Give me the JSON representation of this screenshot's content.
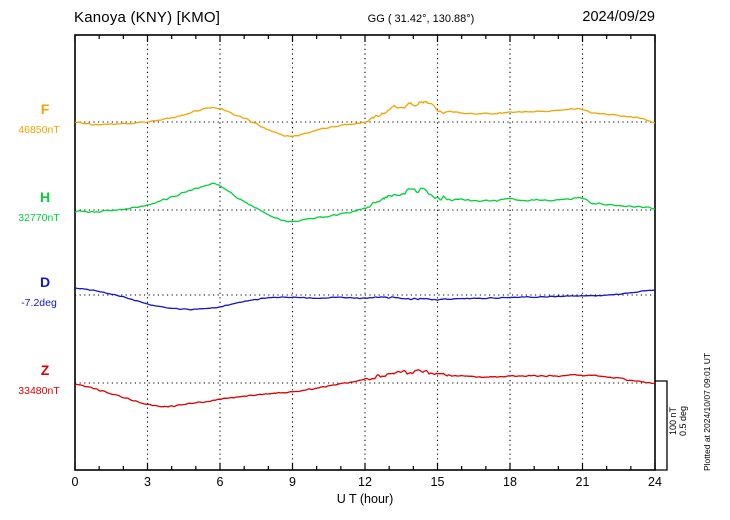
{
  "header": {
    "station": "Kanoya (KNY)  [KMO]",
    "coords": "GG ( 31.42°, 130.88°)",
    "date": "2024/09/29"
  },
  "scale": {
    "line1": "100 nT",
    "line2": "0.5 deg"
  },
  "footer": {
    "note": "Plotted at 2024/10/07 09:01 UT"
  },
  "chart_data": {
    "type": "line",
    "xlabel": "U T (hour)",
    "xlim": [
      0,
      24
    ],
    "xticks": [
      0,
      3,
      6,
      9,
      12,
      15,
      18,
      21,
      24
    ],
    "grid": "dotted vertical every 3h, dotted horizontal at each component baseline",
    "scale_bar": {
      "nT_per_bar": 100,
      "deg_per_bar": 0.5
    },
    "series": [
      {
        "name": "F",
        "value_label": "46850nT",
        "baseline_value": 46850,
        "unit": "nT",
        "color": "#f2a500",
        "noise": 1.2,
        "noise_burst": 3,
        "points": [
          [
            0,
            0
          ],
          [
            0.5,
            -2
          ],
          [
            1,
            -3
          ],
          [
            1.5,
            -3
          ],
          [
            2,
            -2
          ],
          [
            2.5,
            -1
          ],
          [
            3,
            0
          ],
          [
            3.5,
            2
          ],
          [
            4,
            5
          ],
          [
            4.5,
            8
          ],
          [
            5,
            12
          ],
          [
            5.5,
            16
          ],
          [
            5.8,
            17
          ],
          [
            6.2,
            13
          ],
          [
            6.6,
            8
          ],
          [
            7,
            4
          ],
          [
            7.5,
            -2
          ],
          [
            8,
            -9
          ],
          [
            8.5,
            -14
          ],
          [
            8.8,
            -16
          ],
          [
            9.2,
            -15
          ],
          [
            9.6,
            -12
          ],
          [
            10,
            -9
          ],
          [
            10.5,
            -6
          ],
          [
            11,
            -4
          ],
          [
            11.5,
            -2
          ],
          [
            12,
            0
          ],
          [
            12.3,
            4
          ],
          [
            12.6,
            8
          ],
          [
            13,
            13
          ],
          [
            13.3,
            20
          ],
          [
            13.5,
            15
          ],
          [
            13.8,
            22
          ],
          [
            14.1,
            18
          ],
          [
            14.4,
            25
          ],
          [
            14.6,
            20
          ],
          [
            15,
            14
          ],
          [
            15.3,
            10
          ],
          [
            15.6,
            12
          ],
          [
            16,
            10
          ],
          [
            16.5,
            9
          ],
          [
            17,
            9
          ],
          [
            17.5,
            10
          ],
          [
            18,
            11
          ],
          [
            18.5,
            11
          ],
          [
            19,
            12
          ],
          [
            19.5,
            12
          ],
          [
            20,
            13
          ],
          [
            20.5,
            14
          ],
          [
            21,
            15
          ],
          [
            21.4,
            10
          ],
          [
            21.8,
            9
          ],
          [
            22.2,
            8
          ],
          [
            22.6,
            7
          ],
          [
            23,
            6
          ],
          [
            23.4,
            4
          ],
          [
            23.7,
            2
          ],
          [
            24,
            -2
          ]
        ]
      },
      {
        "name": "H",
        "value_label": "32770nT",
        "baseline_value": 32770,
        "unit": "nT",
        "color": "#00d23c",
        "noise": 1.4,
        "noise_burst": 3,
        "points": [
          [
            0,
            -2
          ],
          [
            0.5,
            -2
          ],
          [
            1,
            -2
          ],
          [
            1.5,
            -1
          ],
          [
            2,
            1
          ],
          [
            2.5,
            3
          ],
          [
            3,
            6
          ],
          [
            3.5,
            10
          ],
          [
            4,
            14
          ],
          [
            4.5,
            19
          ],
          [
            5,
            24
          ],
          [
            5.5,
            28
          ],
          [
            5.8,
            30
          ],
          [
            6.2,
            24
          ],
          [
            6.6,
            16
          ],
          [
            7,
            9
          ],
          [
            7.5,
            2
          ],
          [
            8,
            -5
          ],
          [
            8.5,
            -11
          ],
          [
            8.8,
            -13
          ],
          [
            9.2,
            -12
          ],
          [
            9.6,
            -10
          ],
          [
            10,
            -9
          ],
          [
            10.5,
            -7
          ],
          [
            11,
            -5
          ],
          [
            11.5,
            -2
          ],
          [
            12,
            2
          ],
          [
            12.3,
            6
          ],
          [
            12.6,
            10
          ],
          [
            13,
            15
          ],
          [
            13.3,
            21
          ],
          [
            13.5,
            16
          ],
          [
            13.8,
            22
          ],
          [
            14.1,
            19
          ],
          [
            14.4,
            23
          ],
          [
            14.7,
            18
          ],
          [
            15,
            13
          ],
          [
            15.4,
            11
          ],
          [
            16,
            12
          ],
          [
            16.5,
            10
          ],
          [
            17,
            10
          ],
          [
            17.5,
            11
          ],
          [
            18,
            12
          ],
          [
            18.5,
            11
          ],
          [
            19,
            11
          ],
          [
            19.5,
            11
          ],
          [
            20,
            11
          ],
          [
            20.5,
            12
          ],
          [
            21,
            14
          ],
          [
            21.3,
            8
          ],
          [
            21.7,
            7
          ],
          [
            22,
            6
          ],
          [
            22.5,
            5
          ],
          [
            23,
            4
          ],
          [
            23.5,
            3
          ],
          [
            24,
            2
          ]
        ]
      },
      {
        "name": "D",
        "value_label": "-7.2deg",
        "baseline_value": -7.2,
        "unit": "deg",
        "color": "#1414d2",
        "noise": 0.004,
        "noise_burst": 2,
        "points": [
          [
            0,
            0.04
          ],
          [
            0.5,
            0.03
          ],
          [
            1,
            0.02
          ],
          [
            1.5,
            0.005
          ],
          [
            2,
            -0.01
          ],
          [
            2.5,
            -0.03
          ],
          [
            3,
            -0.05
          ],
          [
            3.5,
            -0.065
          ],
          [
            4,
            -0.075
          ],
          [
            4.5,
            -0.08
          ],
          [
            5,
            -0.08
          ],
          [
            5.5,
            -0.075
          ],
          [
            6,
            -0.065
          ],
          [
            6.5,
            -0.05
          ],
          [
            7,
            -0.035
          ],
          [
            7.5,
            -0.025
          ],
          [
            8,
            -0.015
          ],
          [
            8.5,
            -0.01
          ],
          [
            9,
            -0.012
          ],
          [
            9.5,
            -0.015
          ],
          [
            10,
            -0.018
          ],
          [
            10.5,
            -0.015
          ],
          [
            11,
            -0.012
          ],
          [
            11.5,
            -0.015
          ],
          [
            12,
            -0.018
          ],
          [
            12.5,
            -0.015
          ],
          [
            13,
            -0.012
          ],
          [
            13.5,
            -0.018
          ],
          [
            14,
            -0.02
          ],
          [
            14.5,
            -0.022
          ],
          [
            15,
            -0.025
          ],
          [
            15.5,
            -0.022
          ],
          [
            16,
            -0.02
          ],
          [
            16.5,
            -0.018
          ],
          [
            17,
            -0.018
          ],
          [
            17.5,
            -0.016
          ],
          [
            18,
            -0.014
          ],
          [
            18.5,
            -0.012
          ],
          [
            19,
            -0.012
          ],
          [
            19.5,
            -0.01
          ],
          [
            20,
            -0.008
          ],
          [
            20.5,
            -0.006
          ],
          [
            21,
            -0.005
          ],
          [
            21.5,
            -0.003
          ],
          [
            22,
            0
          ],
          [
            22.5,
            0.005
          ],
          [
            23,
            0.012
          ],
          [
            23.5,
            0.02
          ],
          [
            24,
            0.03
          ]
        ]
      },
      {
        "name": "Z",
        "value_label": "33480nT",
        "baseline_value": 33480,
        "unit": "nT",
        "color": "#e00000",
        "noise": 1.1,
        "noise_burst": 3,
        "points": [
          [
            0,
            -1
          ],
          [
            0.5,
            -4
          ],
          [
            1,
            -8
          ],
          [
            1.5,
            -12
          ],
          [
            2,
            -16
          ],
          [
            2.5,
            -20
          ],
          [
            3,
            -24
          ],
          [
            3.5,
            -26
          ],
          [
            4,
            -26
          ],
          [
            4.5,
            -24
          ],
          [
            5,
            -22
          ],
          [
            5.5,
            -20
          ],
          [
            6,
            -18
          ],
          [
            6.5,
            -16
          ],
          [
            7,
            -15
          ],
          [
            7.5,
            -13
          ],
          [
            8,
            -12
          ],
          [
            8.5,
            -11
          ],
          [
            9,
            -10
          ],
          [
            9.5,
            -8
          ],
          [
            10,
            -6
          ],
          [
            10.5,
            -3
          ],
          [
            11,
            -1
          ],
          [
            11.5,
            1
          ],
          [
            12,
            4
          ],
          [
            12.4,
            7
          ],
          [
            12.8,
            9
          ],
          [
            13.2,
            11
          ],
          [
            13.6,
            14
          ],
          [
            13.9,
            10
          ],
          [
            14.2,
            15
          ],
          [
            14.5,
            12
          ],
          [
            15,
            10
          ],
          [
            15.5,
            8
          ],
          [
            16,
            8
          ],
          [
            16.5,
            7
          ],
          [
            17,
            7
          ],
          [
            17.5,
            7
          ],
          [
            18,
            8
          ],
          [
            18.5,
            8
          ],
          [
            19,
            8
          ],
          [
            19.5,
            8
          ],
          [
            20,
            8
          ],
          [
            20.5,
            9
          ],
          [
            21,
            9
          ],
          [
            21.5,
            8
          ],
          [
            22,
            7
          ],
          [
            22.5,
            5
          ],
          [
            23,
            3
          ],
          [
            23.5,
            1
          ],
          [
            24,
            0
          ]
        ]
      }
    ]
  }
}
